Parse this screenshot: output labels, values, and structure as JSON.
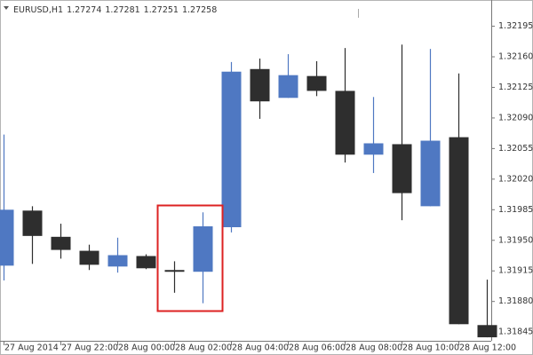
{
  "chart_data": {
    "type": "candlestick",
    "symbol": "EURUSD,H1",
    "quote": [
      1.27274,
      1.27281,
      1.27251,
      1.27258
    ],
    "categories": [
      "27 Aug 2014",
      null,
      "27 Aug 22:00",
      null,
      "28 Aug 00:00",
      null,
      "28 Aug 02:00",
      null,
      "28 Aug 04:00",
      null,
      "28 Aug 06:00",
      null,
      "28 Aug 08:00",
      null,
      "28 Aug 10:00",
      null,
      "28 Aug 12:00",
      null
    ],
    "open": [
      1.31921,
      1.31984,
      1.31954,
      1.31938,
      1.3192,
      1.31932,
      1.31916,
      1.31914,
      1.31965,
      1.32146,
      1.32113,
      1.32138,
      1.32121,
      1.32048,
      1.3206,
      1.31989,
      1.32068,
      1.31853
    ],
    "high": [
      1.32071,
      1.31989,
      1.31969,
      1.31945,
      1.31953,
      1.31934,
      1.31926,
      1.31982,
      1.32154,
      1.32158,
      1.32163,
      1.32155,
      1.3217,
      1.32114,
      1.32174,
      1.32169,
      1.32141,
      1.31905
    ],
    "low": [
      1.31904,
      1.31923,
      1.31929,
      1.31916,
      1.31913,
      1.31917,
      1.3189,
      1.31878,
      1.31959,
      1.32089,
      1.32113,
      1.32115,
      1.32039,
      1.32027,
      1.31973,
      1.31989,
      1.31854,
      1.31839
    ],
    "close": [
      1.31985,
      1.31955,
      1.31939,
      1.31922,
      1.31933,
      1.31918,
      1.31914,
      1.31966,
      1.32143,
      1.32109,
      1.32139,
      1.32121,
      1.32048,
      1.32061,
      1.32004,
      1.32064,
      1.31854,
      1.31839
    ],
    "up_color": "#4f78c2",
    "down_color": "#2e2e2e",
    "ylim": [
      1.31835,
      1.32225
    ],
    "yticks": [
      1.32195,
      {
        "value": 1.3216,
        "label": "1.32160"
      },
      1.32125,
      {
        "value": 1.3209,
        "label": "1.32090"
      },
      1.32055,
      {
        "value": 1.3202,
        "label": "1.32020"
      },
      1.31985,
      {
        "value": 1.3195,
        "label": "1.31950"
      },
      1.31915,
      {
        "value": 1.3188,
        "label": "1.31880"
      },
      1.31845
    ]
  }
}
